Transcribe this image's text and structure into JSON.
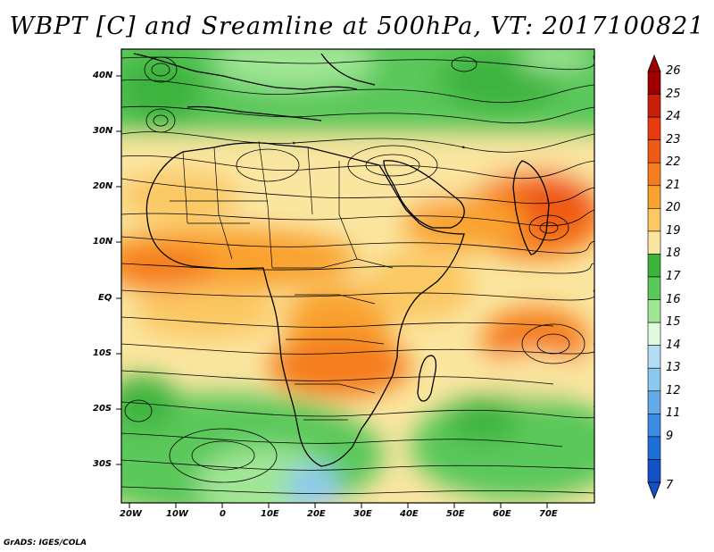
{
  "title": "WBPT [C] and Sreamline at 500hPa, VT: 2017100821",
  "footer": "GrADS: IGES/COLA",
  "map": {
    "latitude_labels": [
      "40N",
      "30N",
      "20N",
      "10N",
      "EQ",
      "10S",
      "20S",
      "30S"
    ],
    "longitude_labels": [
      "20W",
      "10W",
      "0",
      "10E",
      "20E",
      "30E",
      "40E",
      "50E",
      "60E",
      "70E"
    ]
  },
  "colorbar": {
    "labels": [
      "26",
      "25",
      "24",
      "23",
      "22",
      "21",
      "20",
      "19",
      "18",
      "17",
      "16",
      "15",
      "14",
      "13",
      "12",
      "11",
      "9",
      "7"
    ],
    "colors": [
      "#a00000",
      "#c81e0a",
      "#e63c10",
      "#f05a18",
      "#f57d1e",
      "#f9a22d",
      "#fbc864",
      "#fbe6a0",
      "#3cb43c",
      "#5ac85a",
      "#a0e696",
      "#e0fae0",
      "#b4dcf5",
      "#8cc8f0",
      "#64aaeb",
      "#3c8ce1",
      "#1e6ed7",
      "#1450c8"
    ]
  }
}
